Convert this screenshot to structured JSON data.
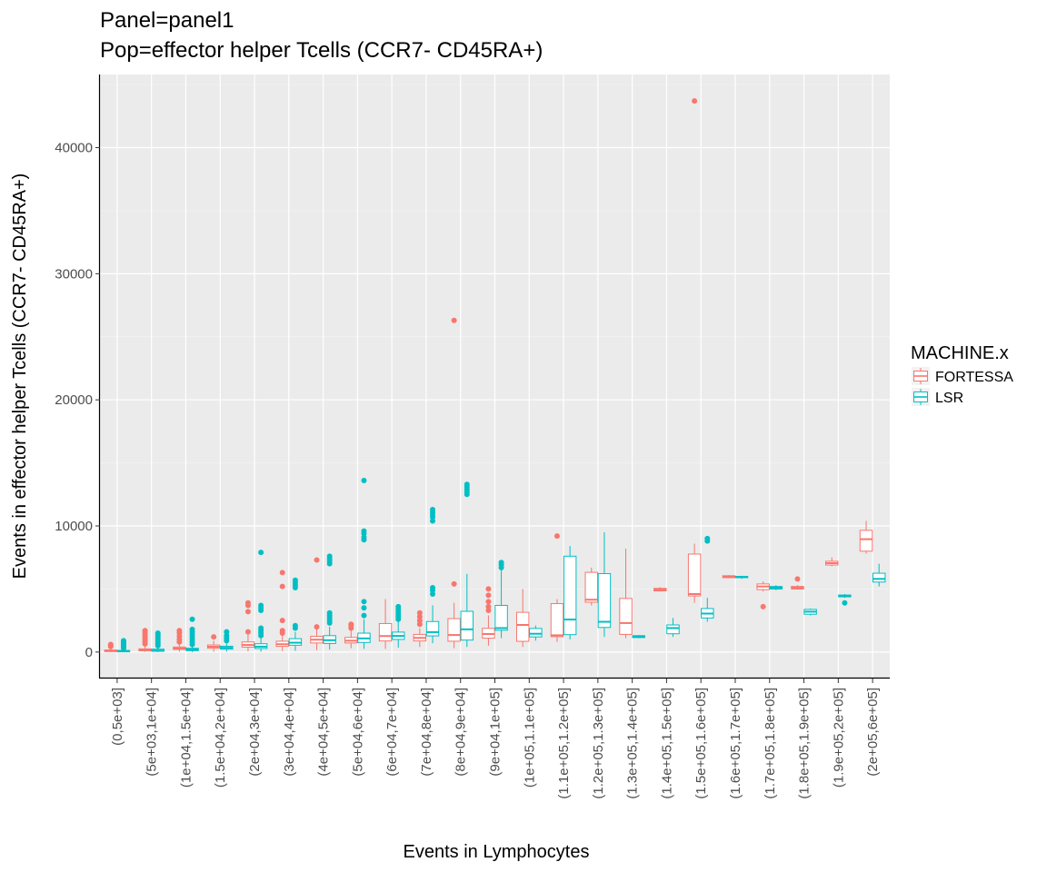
{
  "chart_data": {
    "type": "boxplot",
    "title": "Panel=panel1",
    "subtitle": "Pop=effector helper Tcells (CCR7- CD45RA+)",
    "xlabel": "Events in Lymphocytes",
    "ylabel": "Events in effector helper Tcells (CCR7- CD45RA+)",
    "ylim": [
      -2100,
      45800
    ],
    "yticks": [
      0,
      10000,
      20000,
      30000,
      40000
    ],
    "grid": true,
    "legend_position": "right",
    "legend_title": "MACHINE.x",
    "categories": [
      "(0,5e+03]",
      "(5e+03,1e+04]",
      "(1e+04,1.5e+04]",
      "(1.5e+04,2e+04]",
      "(2e+04,3e+04]",
      "(3e+04,4e+04]",
      "(4e+04,5e+04]",
      "(5e+04,6e+04]",
      "(6e+04,7e+04]",
      "(7e+04,8e+04]",
      "(8e+04,9e+04]",
      "(9e+04,1e+05]",
      "(1e+05,1.1e+05]",
      "(1.1e+05,1.2e+05]",
      "(1.2e+05,1.3e+05]",
      "(1.3e+05,1.4e+05]",
      "(1.4e+05,1.5e+05]",
      "(1.5e+05,1.6e+05]",
      "(1.6e+05,1.7e+05]",
      "(1.7e+05,1.8e+05]",
      "(1.8e+05,1.9e+05]",
      "(1.9e+05,2e+05]",
      "(2e+05,6e+05]"
    ],
    "series": [
      {
        "name": "FORTESSA",
        "color": "#F8766D",
        "boxes": [
          {
            "category": 0,
            "min": 0,
            "q1": 40,
            "median": 90,
            "q3": 160,
            "max": 350,
            "outliers": [
              430,
              520,
              600
            ]
          },
          {
            "category": 1,
            "min": 10,
            "q1": 100,
            "median": 160,
            "q3": 250,
            "max": 550,
            "outliers": [
              650,
              800,
              950,
              1100,
              1250,
              1400,
              1550,
              1700
            ]
          },
          {
            "category": 2,
            "min": 20,
            "q1": 210,
            "median": 290,
            "q3": 400,
            "max": 750,
            "outliers": [
              800,
              1000,
              1250,
              1500,
              1700
            ]
          },
          {
            "category": 3,
            "min": 30,
            "q1": 300,
            "median": 420,
            "q3": 560,
            "max": 900,
            "outliers": [
              1200
            ]
          },
          {
            "category": 4,
            "min": 50,
            "q1": 390,
            "median": 560,
            "q3": 800,
            "max": 1400,
            "outliers": [
              1600,
              3200,
              3700,
              3900
            ]
          },
          {
            "category": 5,
            "min": 80,
            "q1": 450,
            "median": 620,
            "q3": 860,
            "max": 1400,
            "outliers": [
              1500,
              1700,
              2500,
              5200,
              6300
            ]
          },
          {
            "category": 6,
            "min": 150,
            "q1": 720,
            "median": 980,
            "q3": 1250,
            "max": 1800,
            "outliers": [
              2000,
              7300
            ]
          },
          {
            "category": 7,
            "min": 300,
            "q1": 720,
            "median": 900,
            "q3": 1160,
            "max": 1700,
            "outliers": [
              1900,
              2100,
              2200
            ]
          },
          {
            "category": 8,
            "min": 250,
            "q1": 880,
            "median": 1270,
            "q3": 2260,
            "max": 4200,
            "outliers": []
          },
          {
            "category": 9,
            "min": 400,
            "q1": 880,
            "median": 1120,
            "q3": 1400,
            "max": 1900,
            "outliers": [
              2200,
              2500,
              2800,
              3100
            ]
          },
          {
            "category": 10,
            "min": 300,
            "q1": 860,
            "median": 1350,
            "q3": 2650,
            "max": 3900,
            "outliers": [
              5400,
              26300
            ]
          },
          {
            "category": 11,
            "min": 500,
            "q1": 1100,
            "median": 1430,
            "q3": 1880,
            "max": 2900,
            "outliers": [
              3300,
              3600,
              4000,
              4500,
              5000
            ]
          },
          {
            "category": 12,
            "min": 400,
            "q1": 850,
            "median": 2150,
            "q3": 3150,
            "max": 5000,
            "outliers": []
          },
          {
            "category": 13,
            "min": 800,
            "q1": 1220,
            "median": 1330,
            "q3": 3840,
            "max": 4200,
            "outliers": [
              9200
            ]
          },
          {
            "category": 14,
            "min": 3700,
            "q1": 3950,
            "median": 4150,
            "q3": 6320,
            "max": 6700,
            "outliers": []
          },
          {
            "category": 15,
            "min": 1100,
            "q1": 1400,
            "median": 2300,
            "q3": 4250,
            "max": 8200,
            "outliers": []
          },
          {
            "category": 16,
            "min": 4800,
            "q1": 4850,
            "median": 4950,
            "q3": 5050,
            "max": 5150,
            "outliers": []
          },
          {
            "category": 17,
            "min": 3900,
            "q1": 4450,
            "median": 4600,
            "q3": 7770,
            "max": 8600,
            "outliers": [
              43700
            ]
          },
          {
            "category": 18,
            "min": 5850,
            "q1": 5900,
            "median": 6000,
            "q3": 6050,
            "max": 6100,
            "outliers": []
          },
          {
            "category": 19,
            "min": 4800,
            "q1": 4950,
            "median": 5200,
            "q3": 5400,
            "max": 5600,
            "outliers": [
              3600
            ]
          },
          {
            "category": 20,
            "min": 4950,
            "q1": 5000,
            "median": 5100,
            "q3": 5200,
            "max": 5300,
            "outliers": [
              5800
            ]
          },
          {
            "category": 21,
            "min": 6800,
            "q1": 6900,
            "median": 7050,
            "q3": 7200,
            "max": 7500,
            "outliers": []
          },
          {
            "category": 22,
            "min": 7800,
            "q1": 8000,
            "median": 8950,
            "q3": 9650,
            "max": 10400,
            "outliers": []
          }
        ]
      },
      {
        "name": "LSR",
        "color": "#00BFC4",
        "boxes": [
          {
            "category": 0,
            "min": 0,
            "q1": 20,
            "median": 60,
            "q3": 130,
            "max": 250,
            "outliers": [
              300,
              400,
              500,
              600,
              700,
              800,
              900
            ]
          },
          {
            "category": 1,
            "min": 0,
            "q1": 60,
            "median": 120,
            "q3": 230,
            "max": 400,
            "outliers": [
              500,
              650,
              800,
              950,
              1100,
              1250,
              1400,
              1500
            ]
          },
          {
            "category": 2,
            "min": 0,
            "q1": 110,
            "median": 200,
            "q3": 300,
            "max": 450,
            "outliers": [
              600,
              800,
              1000,
              1200,
              1400,
              1600,
              1800,
              2600
            ]
          },
          {
            "category": 3,
            "min": 30,
            "q1": 230,
            "median": 340,
            "q3": 460,
            "max": 700,
            "outliers": [
              900,
              1100,
              1300,
              1600
            ]
          },
          {
            "category": 4,
            "min": 20,
            "q1": 280,
            "median": 430,
            "q3": 660,
            "max": 1100,
            "outliers": [
              1300,
              1500,
              1700,
              1900,
              3300,
              3500,
              3700,
              7900
            ]
          },
          {
            "category": 5,
            "min": 100,
            "q1": 540,
            "median": 740,
            "q3": 1060,
            "max": 1600,
            "outliers": [
              1900,
              2100,
              5100,
              5300,
              5500,
              5700
            ]
          },
          {
            "category": 6,
            "min": 200,
            "q1": 680,
            "median": 940,
            "q3": 1300,
            "max": 2000,
            "outliers": [
              2300,
              2500,
              2700,
              2900,
              3100,
              7000,
              7200,
              7400,
              7600
            ]
          },
          {
            "category": 7,
            "min": 250,
            "q1": 760,
            "median": 1080,
            "q3": 1500,
            "max": 2600,
            "outliers": [
              2900,
              3500,
              4000,
              8900,
              9100,
              9400,
              9600,
              13600
            ]
          },
          {
            "category": 8,
            "min": 350,
            "q1": 1000,
            "median": 1280,
            "q3": 1580,
            "max": 2400,
            "outliers": [
              2600,
              2800,
              3000,
              3200,
              3400,
              3600
            ]
          },
          {
            "category": 9,
            "min": 700,
            "q1": 1280,
            "median": 1580,
            "q3": 2420,
            "max": 3700,
            "outliers": [
              4600,
              4900,
              5100,
              10400,
              10700,
              10900,
              11100,
              11300
            ]
          },
          {
            "category": 10,
            "min": 400,
            "q1": 950,
            "median": 1800,
            "q3": 3230,
            "max": 6200,
            "outliers": [
              12500,
              12700,
              12900,
              13100,
              13300
            ]
          },
          {
            "category": 11,
            "min": 1100,
            "q1": 1730,
            "median": 1900,
            "q3": 3700,
            "max": 6500,
            "outliers": [
              6700,
              6900,
              7100
            ]
          },
          {
            "category": 12,
            "min": 900,
            "q1": 1200,
            "median": 1450,
            "q3": 1870,
            "max": 2100,
            "outliers": []
          },
          {
            "category": 13,
            "min": 1000,
            "q1": 1380,
            "median": 2580,
            "q3": 7600,
            "max": 8400,
            "outliers": []
          },
          {
            "category": 14,
            "min": 1200,
            "q1": 1950,
            "median": 2400,
            "q3": 6220,
            "max": 9500,
            "outliers": []
          },
          {
            "category": 15,
            "min": 1100,
            "q1": 1150,
            "median": 1220,
            "q3": 1300,
            "max": 1350,
            "outliers": []
          },
          {
            "category": 16,
            "min": 1200,
            "q1": 1450,
            "median": 1900,
            "q3": 2150,
            "max": 2700,
            "outliers": []
          },
          {
            "category": 17,
            "min": 2400,
            "q1": 2700,
            "median": 3050,
            "q3": 3450,
            "max": 4300,
            "outliers": [
              8800,
              9000
            ]
          },
          {
            "category": 18,
            "min": 5800,
            "q1": 5900,
            "median": 5950,
            "q3": 6000,
            "max": 6050,
            "outliers": []
          },
          {
            "category": 19,
            "min": 4900,
            "q1": 5000,
            "median": 5100,
            "q3": 5200,
            "max": 5300,
            "outliers": []
          },
          {
            "category": 20,
            "min": 2900,
            "q1": 3000,
            "median": 3200,
            "q3": 3380,
            "max": 3450,
            "outliers": []
          },
          {
            "category": 21,
            "min": 4300,
            "q1": 4380,
            "median": 4450,
            "q3": 4520,
            "max": 4600,
            "outliers": [
              3900
            ]
          },
          {
            "category": 22,
            "min": 5200,
            "q1": 5550,
            "median": 5800,
            "q3": 6250,
            "max": 7000,
            "outliers": []
          }
        ]
      }
    ]
  }
}
